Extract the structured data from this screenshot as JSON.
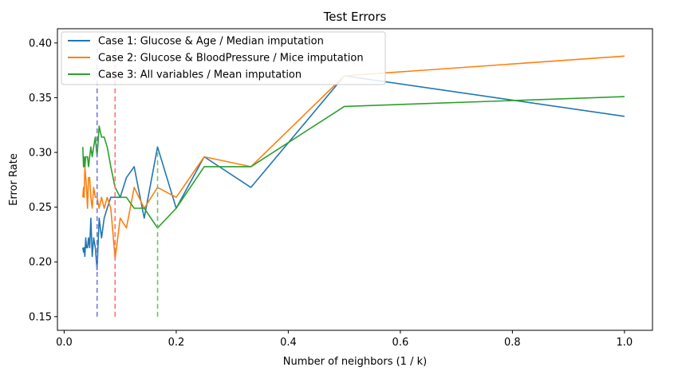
{
  "chart_data": {
    "type": "line",
    "title": "Test Errors",
    "xlabel": "Number of neighbors (1 / k)",
    "ylabel": "Error Rate",
    "xlim": [
      -0.012,
      1.05
    ],
    "ylim": [
      0.1375,
      0.413
    ],
    "x_ticks": [
      0.0,
      0.2,
      0.4,
      0.6,
      0.8,
      1.0
    ],
    "x_tick_labels": [
      "0.0",
      "0.2",
      "0.4",
      "0.6",
      "0.8",
      "1.0"
    ],
    "y_ticks": [
      0.15,
      0.2,
      0.25,
      0.3,
      0.35,
      0.4
    ],
    "y_tick_labels": [
      "0.15",
      "0.20",
      "0.25",
      "0.30",
      "0.35",
      "0.40"
    ],
    "grid": false,
    "legend_position": "top-left",
    "series": [
      {
        "name": "Case 1: Glucose & Age / Median imputation",
        "color": "#1f77b4",
        "x": [
          0.0333,
          0.0345,
          0.0357,
          0.037,
          0.0385,
          0.04,
          0.0417,
          0.0435,
          0.0455,
          0.0476,
          0.05,
          0.0526,
          0.0556,
          0.0588,
          0.0625,
          0.0667,
          0.0714,
          0.0769,
          0.0833,
          0.0909,
          0.1,
          0.1111,
          0.125,
          0.1429,
          0.1667,
          0.2,
          0.25,
          0.3333,
          0.5,
          1.0
        ],
        "y": [
          0.213,
          0.209,
          0.213,
          0.205,
          0.222,
          0.213,
          0.213,
          0.222,
          0.213,
          0.24,
          0.205,
          0.222,
          0.213,
          0.193,
          0.24,
          0.222,
          0.24,
          0.249,
          0.259,
          0.259,
          0.259,
          0.277,
          0.287,
          0.24,
          0.305,
          0.249,
          0.296,
          0.268,
          0.37,
          0.333
        ]
      },
      {
        "name": "Case 2: Glucose & BloodPressure / Mice imputation",
        "color": "#ff7f0e",
        "x": [
          0.0333,
          0.0345,
          0.0357,
          0.037,
          0.0385,
          0.04,
          0.0417,
          0.0435,
          0.0455,
          0.0476,
          0.05,
          0.0526,
          0.0556,
          0.0588,
          0.0625,
          0.0667,
          0.0714,
          0.0769,
          0.0833,
          0.0909,
          0.1,
          0.1111,
          0.125,
          0.1429,
          0.1667,
          0.2,
          0.25,
          0.3333,
          0.5,
          1.0
        ],
        "y": [
          0.259,
          0.268,
          0.259,
          0.287,
          0.277,
          0.268,
          0.249,
          0.277,
          0.277,
          0.259,
          0.249,
          0.268,
          0.259,
          0.259,
          0.249,
          0.259,
          0.249,
          0.259,
          0.249,
          0.203,
          0.24,
          0.231,
          0.268,
          0.249,
          0.268,
          0.259,
          0.296,
          0.287,
          0.37,
          0.388
        ]
      },
      {
        "name": "Case 3: All variables / Mean imputation",
        "color": "#2ca02c",
        "x": [
          0.0333,
          0.0345,
          0.0357,
          0.037,
          0.0385,
          0.04,
          0.0417,
          0.0435,
          0.0455,
          0.0476,
          0.05,
          0.0526,
          0.0556,
          0.0588,
          0.0625,
          0.0667,
          0.0714,
          0.0769,
          0.0833,
          0.0909,
          0.1,
          0.1111,
          0.125,
          0.1429,
          0.1667,
          0.2,
          0.25,
          0.3333,
          0.5,
          1.0
        ],
        "y": [
          0.305,
          0.287,
          0.296,
          0.287,
          0.296,
          0.296,
          0.296,
          0.287,
          0.296,
          0.305,
          0.296,
          0.305,
          0.314,
          0.296,
          0.324,
          0.314,
          0.314,
          0.305,
          0.287,
          0.268,
          0.259,
          0.259,
          0.249,
          0.249,
          0.231,
          0.249,
          0.287,
          0.287,
          0.342,
          0.351
        ]
      }
    ],
    "vertical_lines": [
      {
        "x": 0.0588,
        "color": "#7878dc",
        "ymin": 0.15,
        "ymax": 0.4
      },
      {
        "x": 0.0909,
        "color": "#ff7070",
        "ymin": 0.15,
        "ymax": 0.4
      },
      {
        "x": 0.1667,
        "color": "#70c070",
        "ymin": 0.15,
        "ymax": 0.3
      }
    ]
  }
}
